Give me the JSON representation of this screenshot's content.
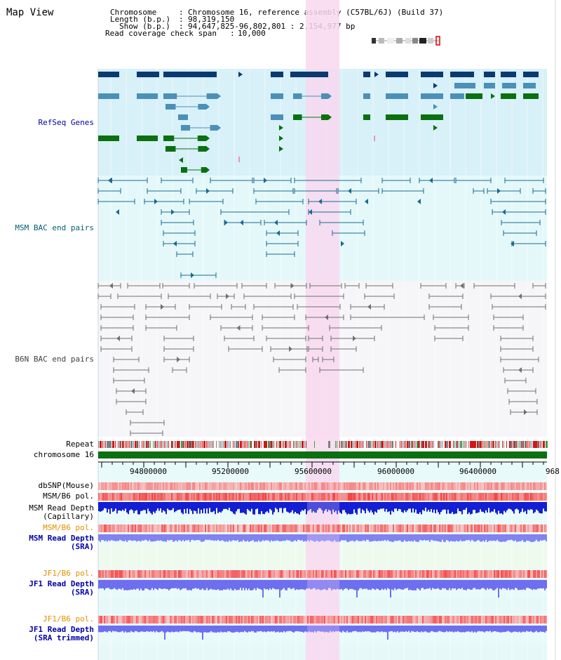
{
  "view_title": "Map View",
  "info": {
    "chromosome_label": "Chromosome",
    "chromosome_value": "Chromosome 16, reference assembly (C57BL/6J) (Build 37)",
    "length_label": "Length (b.p.)",
    "length_value": "98,319,150",
    "show_label": "Show (b.p.)",
    "show_value": "94,647,825-96,802,801 : 2,154,977 bp",
    "coverage_label": "Read coverage check span",
    "coverage_value": "10,000"
  },
  "tracks": {
    "refseq": "RefSeq Genes",
    "msm_bac": "MSM BAC end pairs",
    "b6n_bac": "B6N BAC end pairs",
    "repeat": "Repeat",
    "chromosome": "chromosome 16",
    "dbsnp": "dbSNP(Mouse)",
    "msm_b6_pol_1": "MSM/B6 pol.",
    "msm_depth_cap_1": "MSM Read Depth",
    "msm_depth_cap_2": "(Capillary)",
    "msm_b6_pol_2": "MSM/B6 pol.",
    "msm_depth_sra_1": "MSM Read Depth",
    "msm_depth_sra_2": "(SRA)",
    "jf1_b6_pol_1": "JF1/B6 pol.",
    "jf1_depth_sra_1": "JF1 Read Depth",
    "jf1_depth_sra_2": "(SRA)",
    "jf1_b6_pol_2": "JF1/B6 pol.",
    "jf1_depth_trim_1": "JF1 Read Depth",
    "jf1_depth_trim_2": "(SRA trimmed)"
  },
  "ruler": {
    "ticks": [
      "94800000",
      "95200000",
      "95600000",
      "96000000",
      "96400000",
      "968"
    ]
  },
  "colors": {
    "refseq_bg": "#d8f0f8",
    "msm_bg": "#e4f8fa",
    "b6n_bg": "#f6f6f8",
    "highlight": "#f8d8f0",
    "gene_dark": "#0a3a70",
    "gene_mid": "#4a90b8",
    "gene_green": "#0a7010",
    "bac_msm": "#1a6a90",
    "bac_b6n": "#707070",
    "chrom": "#0a7010",
    "label_blue": "#0000aa",
    "label_teal": "#006070",
    "label_gray": "#404040",
    "label_orange": "#e09000"
  }
}
